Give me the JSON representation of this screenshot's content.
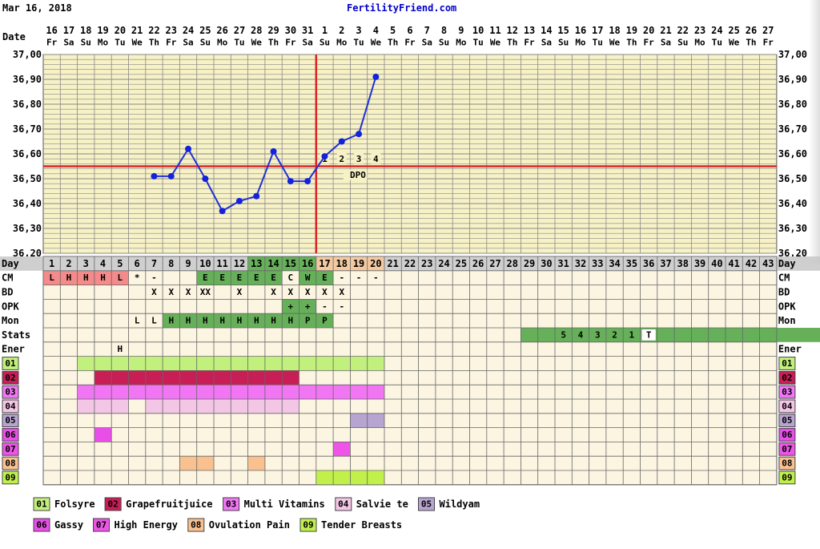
{
  "header": {
    "date": "Mar 16, 2018",
    "site": "FertilityFriend.com"
  },
  "dates": [
    "16",
    "17",
    "18",
    "19",
    "20",
    "21",
    "22",
    "23",
    "24",
    "25",
    "26",
    "27",
    "28",
    "29",
    "30",
    "31",
    "1",
    "2",
    "3",
    "4",
    "5",
    "6",
    "7",
    "8",
    "9",
    "10",
    "11",
    "12",
    "13",
    "14",
    "15",
    "16",
    "17",
    "18",
    "19",
    "20",
    "21",
    "22",
    "23",
    "24",
    "25",
    "26",
    "27"
  ],
  "weekdays": [
    "Fr",
    "Sa",
    "Su",
    "Mo",
    "Tu",
    "We",
    "Th",
    "Fr",
    "Sa",
    "Su",
    "Mo",
    "Tu",
    "We",
    "Th",
    "Fr",
    "Sa",
    "Su",
    "Mo",
    "Tu",
    "We",
    "Th",
    "Fr",
    "Sa",
    "Su",
    "Mo",
    "Tu",
    "We",
    "Th",
    "Fr",
    "Sa",
    "Su",
    "Mo",
    "Tu",
    "We",
    "Th",
    "Fr",
    "Sa",
    "Su",
    "Mo",
    "Tu",
    "We",
    "Th",
    "Fr"
  ],
  "days": [
    "1",
    "2",
    "3",
    "4",
    "5",
    "6",
    "7",
    "8",
    "9",
    "10",
    "11",
    "12",
    "13",
    "14",
    "15",
    "16",
    "17",
    "18",
    "19",
    "20",
    "21",
    "22",
    "23",
    "24",
    "25",
    "26",
    "27",
    "28",
    "29",
    "30",
    "31",
    "32",
    "33",
    "34",
    "35",
    "36",
    "37",
    "38",
    "39",
    "40",
    "41",
    "42",
    "43"
  ],
  "row_labels": {
    "date": "Date",
    "day": "Day",
    "cm": "CM",
    "bd": "BD",
    "opk": "OPK",
    "mon": "Mon",
    "stats": "Stats",
    "ener": "Ener"
  },
  "colors": {
    "grid_bg": "#f7f1c6",
    "grid_line": "#888888",
    "line": "#1f2fd6",
    "point": "#1222dd",
    "coverline": "#dd2222",
    "day_normal": "#cfcfcf",
    "day_fertile": "#66b05a",
    "day_luteal": "#f2c9a0",
    "low_bg": "#fbf5e2",
    "menstrual": "#f48a8a",
    "fertile": "#66b05a",
    "c01": "#c2f07c",
    "c02": "#c81e56",
    "c03": "#f176f3",
    "c04": "#f3c6e6",
    "c05": "#b7a4d0",
    "c06": "#ea4ee9",
    "c07": "#ee55e6",
    "c08": "#f8c18f",
    "c09": "#c1f04b"
  },
  "chart_data": {
    "type": "line",
    "title": "",
    "ylabel": "",
    "ylim": [
      36.2,
      37.0
    ],
    "yticks": [
      "37,00",
      "36,90",
      "36,80",
      "36,70",
      "36,60",
      "36,50",
      "36,40",
      "36,30",
      "36,20"
    ],
    "grid": true,
    "x_cycle_days": [
      7,
      8,
      9,
      10,
      11,
      12,
      13,
      14,
      15,
      16,
      17,
      18,
      19,
      20
    ],
    "temperatures": [
      36.51,
      36.51,
      36.62,
      36.5,
      36.37,
      36.41,
      36.43,
      36.61,
      36.49,
      36.49,
      36.59,
      36.65,
      36.68,
      36.91
    ],
    "coverline": 36.55,
    "ovulation_cycle_day": 16,
    "dpo_labels": [
      "1",
      "2",
      "3",
      "4"
    ],
    "dpo_text": "DPO"
  },
  "cm": [
    {
      "day": 1,
      "v": "L",
      "bg": "menstrual"
    },
    {
      "day": 2,
      "v": "H",
      "bg": "menstrual"
    },
    {
      "day": 3,
      "v": "H",
      "bg": "menstrual"
    },
    {
      "day": 4,
      "v": "H",
      "bg": "menstrual"
    },
    {
      "day": 5,
      "v": "L",
      "bg": "menstrual"
    },
    {
      "day": 6,
      "v": "*"
    },
    {
      "day": 7,
      "v": "-"
    },
    {
      "day": 10,
      "v": "E",
      "bg": "fertile"
    },
    {
      "day": 11,
      "v": "E",
      "bg": "fertile"
    },
    {
      "day": 12,
      "v": "E",
      "bg": "fertile"
    },
    {
      "day": 13,
      "v": "E",
      "bg": "fertile"
    },
    {
      "day": 14,
      "v": "E",
      "bg": "fertile"
    },
    {
      "day": 15,
      "v": "C",
      "bg": "low_bg"
    },
    {
      "day": 16,
      "v": "W",
      "bg": "fertile"
    },
    {
      "day": 17,
      "v": "E",
      "bg": "fertile"
    },
    {
      "day": 18,
      "v": "-"
    },
    {
      "day": 19,
      "v": "-"
    },
    {
      "day": 20,
      "v": "-"
    }
  ],
  "bd": [
    {
      "day": 7,
      "v": "X"
    },
    {
      "day": 8,
      "v": "X"
    },
    {
      "day": 9,
      "v": "X"
    },
    {
      "day": 10,
      "v": "XX"
    },
    {
      "day": 12,
      "v": "X"
    },
    {
      "day": 14,
      "v": "X"
    },
    {
      "day": 15,
      "v": "X"
    },
    {
      "day": 16,
      "v": "X"
    },
    {
      "day": 17,
      "v": "X"
    },
    {
      "day": 18,
      "v": "X"
    }
  ],
  "opk": [
    {
      "day": 15,
      "v": "+",
      "bg": "fertile"
    },
    {
      "day": 16,
      "v": "+",
      "bg": "fertile"
    },
    {
      "day": 17,
      "v": "-"
    },
    {
      "day": 18,
      "v": "-"
    }
  ],
  "mon": [
    {
      "day": 6,
      "v": "L"
    },
    {
      "day": 7,
      "v": "L"
    },
    {
      "day": 8,
      "v": "H",
      "bg": "fertile"
    },
    {
      "day": 9,
      "v": "H",
      "bg": "fertile"
    },
    {
      "day": 10,
      "v": "H",
      "bg": "fertile"
    },
    {
      "day": 11,
      "v": "H",
      "bg": "fertile"
    },
    {
      "day": 12,
      "v": "H",
      "bg": "fertile"
    },
    {
      "day": 13,
      "v": "H",
      "bg": "fertile"
    },
    {
      "day": 14,
      "v": "H",
      "bg": "fertile"
    },
    {
      "day": 15,
      "v": "H",
      "bg": "fertile"
    },
    {
      "day": 16,
      "v": "P",
      "bg": "fertile"
    },
    {
      "day": 17,
      "v": "P",
      "bg": "fertile"
    }
  ],
  "stats": {
    "fill_from": 29,
    "fill_to": 43,
    "values": [
      {
        "day": 31,
        "v": "5"
      },
      {
        "day": 32,
        "v": "4"
      },
      {
        "day": 33,
        "v": "3"
      },
      {
        "day": 34,
        "v": "2"
      },
      {
        "day": 35,
        "v": "1"
      },
      {
        "day": 36,
        "v": "T",
        "white": true
      }
    ]
  },
  "ener": [
    {
      "day": 5,
      "v": "H"
    }
  ],
  "custom_rows": [
    {
      "code": "01",
      "color": "c01",
      "ranges": [
        [
          3,
          20
        ]
      ]
    },
    {
      "code": "02",
      "color": "c02",
      "ranges": [
        [
          4,
          15
        ]
      ]
    },
    {
      "code": "03",
      "color": "c03",
      "ranges": [
        [
          3,
          20
        ]
      ]
    },
    {
      "code": "04",
      "color": "c04",
      "ranges": [
        [
          3,
          5
        ],
        [
          7,
          15
        ]
      ]
    },
    {
      "code": "05",
      "color": "c05",
      "ranges": [
        [
          19,
          20
        ]
      ]
    },
    {
      "code": "06",
      "color": "c06",
      "ranges": [
        [
          4,
          4
        ]
      ]
    },
    {
      "code": "07",
      "color": "c07",
      "ranges": [
        [
          18,
          18
        ]
      ]
    },
    {
      "code": "08",
      "color": "c08",
      "ranges": [
        [
          9,
          10
        ],
        [
          13,
          13
        ]
      ]
    },
    {
      "code": "09",
      "color": "c09",
      "ranges": [
        [
          17,
          20
        ]
      ]
    }
  ],
  "legend": [
    {
      "code": "01",
      "label": "Folsyre",
      "color": "c01"
    },
    {
      "code": "02",
      "label": "Grapefruitjuice",
      "color": "c02"
    },
    {
      "code": "03",
      "label": "Multi Vitamins",
      "color": "c03"
    },
    {
      "code": "04",
      "label": "Salvie te",
      "color": "c04"
    },
    {
      "code": "05",
      "label": "Wildyam",
      "color": "c05"
    },
    {
      "code": "06",
      "label": "Gassy",
      "color": "c06"
    },
    {
      "code": "07",
      "label": "High Energy",
      "color": "c07"
    },
    {
      "code": "08",
      "label": "Ovulation Pain",
      "color": "c08"
    },
    {
      "code": "09",
      "label": "Tender Breasts",
      "color": "c09"
    }
  ]
}
